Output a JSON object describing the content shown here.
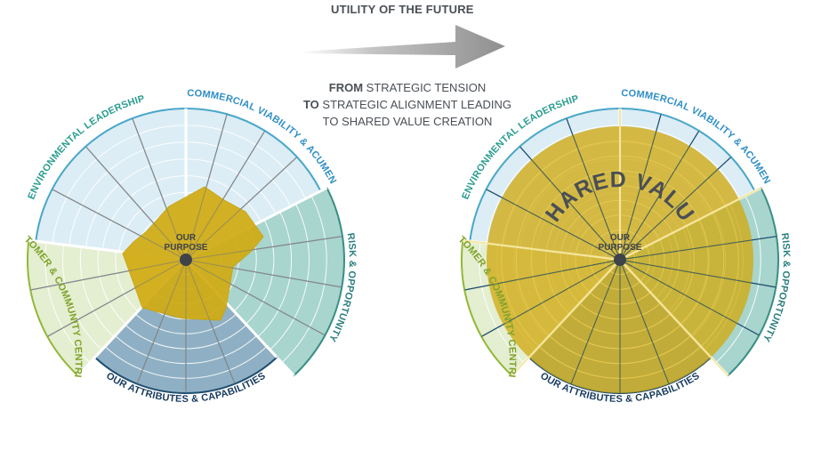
{
  "header": {
    "title": "UTILITY OF THE FUTURE"
  },
  "tagline": {
    "line1_bold": "FROM",
    "line1_rest": " STRATEGIC TENSION",
    "line2_bold": "TO",
    "line2_rest": " STRATEGIC ALIGNMENT LEADING",
    "line3": "TO SHARED VALUE CREATION"
  },
  "segments": [
    {
      "key": "environmental",
      "label": "ENVIRONMENTAL LEADERSHIP",
      "color": "#2a9d8f",
      "fill": "#dcedf5",
      "line": "#4aa7c9"
    },
    {
      "key": "commercial",
      "label": "COMMERCIAL VIABILITY & ACUMEN",
      "color": "#2f8fc6",
      "fill": "#dcedf5",
      "line": "#4aa7c9"
    },
    {
      "key": "risk",
      "label": "RISK & OPPORTUNITY",
      "color": "#2a7f7f",
      "fill": "#a8d5cd",
      "line": "#3a8f86"
    },
    {
      "key": "attributes",
      "label": "OUR ATTRIBUTES & CAPABILITIES",
      "color": "#173a5e",
      "fill": "#8fb0c4",
      "line": "#1f4e6f"
    },
    {
      "key": "customer",
      "label": "CUSTOMER & COMMUNITY CENTRICITY",
      "color": "#7fa32a",
      "fill": "#e4eed0",
      "line": "#93b83a"
    }
  ],
  "center_label": [
    "OUR",
    "PURPOSE"
  ],
  "shared_value_label": "SHARED VALUE",
  "colors": {
    "gold": "#d4b01c",
    "gold_fill": "#d1ab12",
    "arrow": "#9a9a9a",
    "text_dark": "#4a4f55"
  }
}
